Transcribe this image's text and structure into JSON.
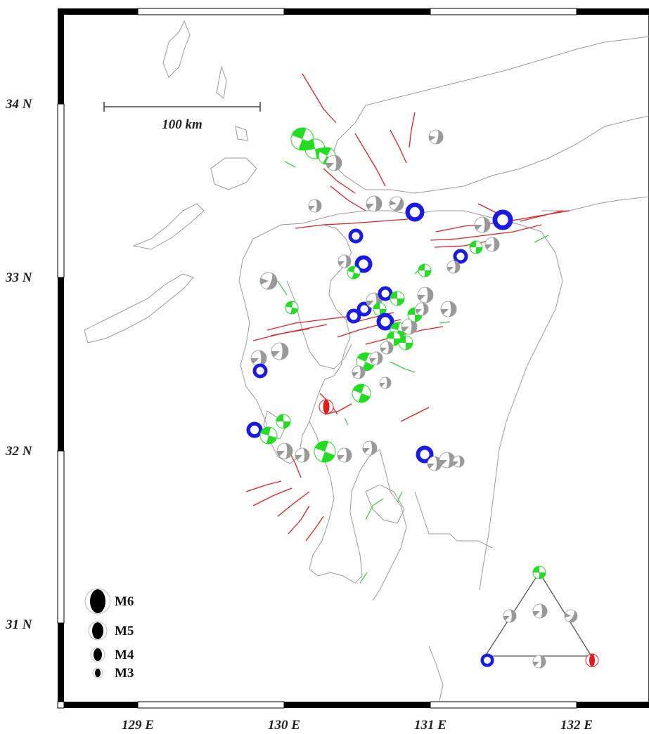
{
  "map": {
    "latitude_labels": [
      "34 N",
      "33 N",
      "32 N",
      "31 N"
    ],
    "longitude_labels": [
      "129 E",
      "130 E",
      "131 E",
      "132 E"
    ],
    "scale_bar_label": "100 km",
    "magnitude_legend": [
      "M6",
      "M5",
      "M4",
      "M3"
    ],
    "mechanism_colors": {
      "strike_slip": "#22dd22",
      "normal": "#1a1ae6",
      "reverse": "#e61a1a",
      "other": "#999999",
      "active_faults": "#e02020",
      "other_faults": "#44cc44"
    },
    "triangle_diagram_corners": [
      "strike-slip",
      "normal",
      "reverse"
    ]
  }
}
